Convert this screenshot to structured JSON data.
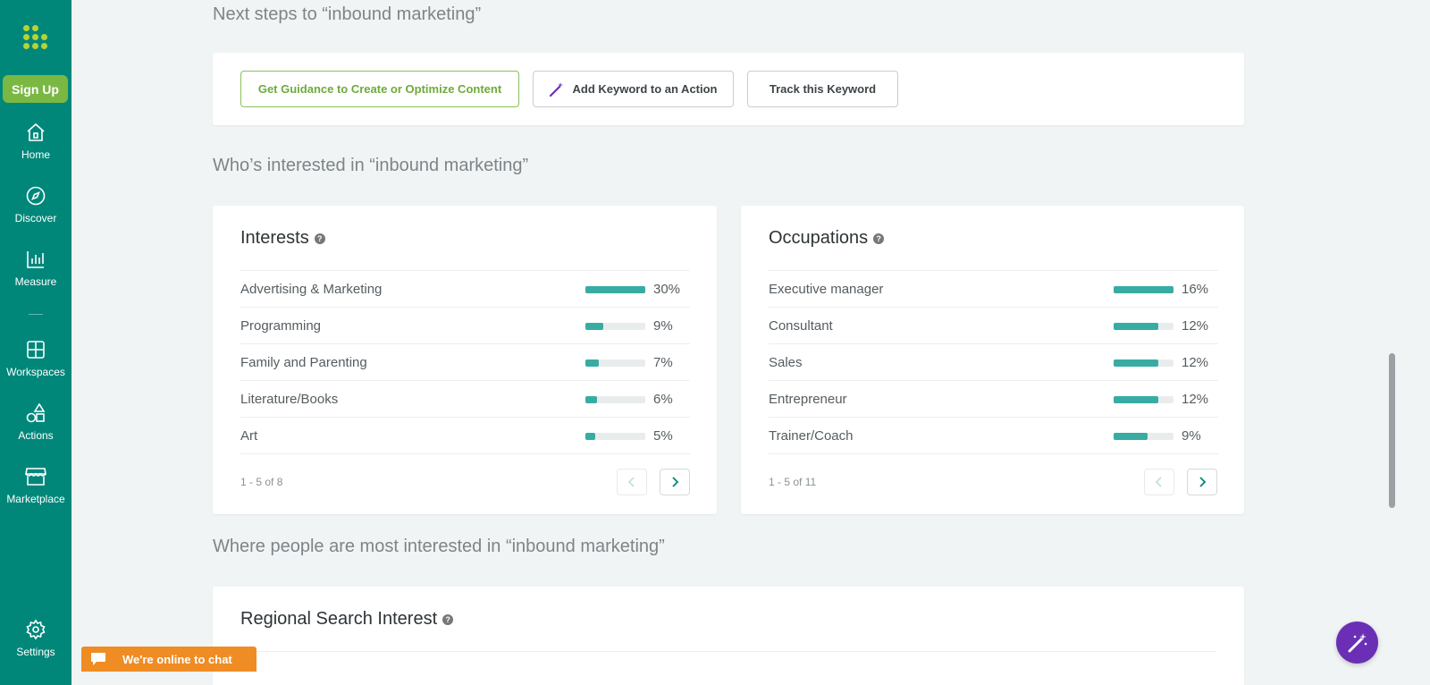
{
  "sidebar": {
    "signup_label": "Sign Up",
    "items": [
      {
        "label": "Home",
        "icon": "home-icon"
      },
      {
        "label": "Discover",
        "icon": "compass-icon"
      },
      {
        "label": "Measure",
        "icon": "bar-chart-icon"
      },
      {
        "label": "Workspaces",
        "icon": "grid-icon"
      },
      {
        "label": "Actions",
        "icon": "shapes-icon"
      },
      {
        "label": "Marketplace",
        "icon": "store-icon"
      },
      {
        "label": "Settings",
        "icon": "gear-icon"
      }
    ]
  },
  "next_steps": {
    "title": "Next steps to “inbound marketing”",
    "buttons": {
      "guidance": "Get Guidance to Create or Optimize Content",
      "add_keyword": "Add Keyword to an Action",
      "track": "Track this Keyword"
    }
  },
  "interested": {
    "title": "Who’s interested in “inbound marketing”",
    "interests": {
      "title": "Interests",
      "rows": [
        {
          "label": "Advertising & Marketing",
          "pct": "30%",
          "fill": 100
        },
        {
          "label": "Programming",
          "pct": "9%",
          "fill": 30
        },
        {
          "label": "Family and Parenting",
          "pct": "7%",
          "fill": 23
        },
        {
          "label": "Literature/Books",
          "pct": "6%",
          "fill": 20
        },
        {
          "label": "Art",
          "pct": "5%",
          "fill": 16
        }
      ],
      "pager": "1 - 5 of 8"
    },
    "occupations": {
      "title": "Occupations",
      "rows": [
        {
          "label": "Executive manager",
          "pct": "16%",
          "fill": 100
        },
        {
          "label": "Consultant",
          "pct": "12%",
          "fill": 75
        },
        {
          "label": "Sales",
          "pct": "12%",
          "fill": 75
        },
        {
          "label": "Entrepreneur",
          "pct": "12%",
          "fill": 75
        },
        {
          "label": "Trainer/Coach",
          "pct": "9%",
          "fill": 56
        }
      ],
      "pager": "1 - 5 of 11"
    }
  },
  "regional": {
    "title": "Where people are most interested in “inbound marketing”",
    "card_title": "Regional Search Interest"
  },
  "chat": {
    "label": "We're online to chat"
  },
  "colors": {
    "sidebar": "#00877a",
    "accent_green": "#7ab843",
    "bar": "#38aca3",
    "chat": "#ef8c24",
    "magic": "#6a2fb5"
  }
}
